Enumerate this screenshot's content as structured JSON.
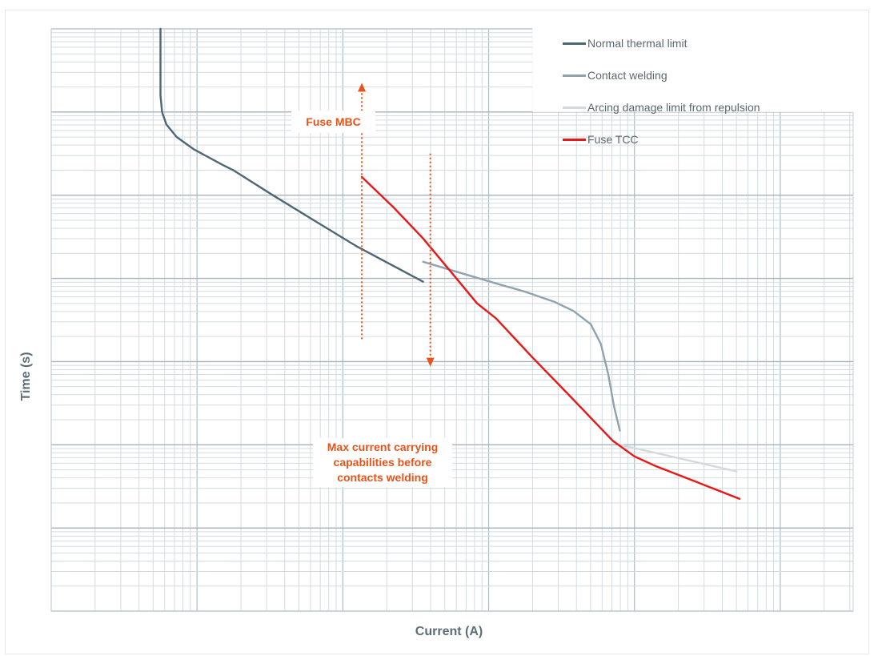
{
  "chart_data": {
    "type": "line",
    "title": "",
    "xlabel": "Current (A)",
    "ylabel": "Time (s)",
    "x_scale": "log",
    "y_scale": "log",
    "x_decades": 5.5,
    "y_decades": 7,
    "grid": true,
    "tick_labels": "none",
    "legend_position": "top-right",
    "series": [
      {
        "name": "Normal thermal limit",
        "color": "#4f6675",
        "points": [
          [
            0.749,
            7.0
          ],
          [
            0.749,
            6.2
          ],
          [
            0.76,
            6.0
          ],
          [
            0.79,
            5.85
          ],
          [
            0.86,
            5.7
          ],
          [
            0.98,
            5.55
          ],
          [
            1.18,
            5.36
          ],
          [
            1.25,
            5.3
          ],
          [
            1.52,
            5.0
          ],
          [
            1.8,
            4.7
          ],
          [
            2.1,
            4.38
          ],
          [
            2.55,
            3.96
          ]
        ]
      },
      {
        "name": "Contact welding",
        "color": "#8fa3ae",
        "points": [
          [
            2.55,
            4.2
          ],
          [
            2.8,
            4.07
          ],
          [
            3.05,
            3.94
          ],
          [
            3.25,
            3.84
          ],
          [
            3.45,
            3.72
          ],
          [
            3.58,
            3.61
          ],
          [
            3.7,
            3.45
          ],
          [
            3.77,
            3.21
          ],
          [
            3.82,
            2.85
          ],
          [
            3.86,
            2.46
          ],
          [
            3.9,
            2.17
          ]
        ]
      },
      {
        "name": "Arcing damage limit from repulsion",
        "color": "#d4dadc",
        "points": [
          [
            3.9,
            2.0
          ],
          [
            4.25,
            1.86
          ],
          [
            4.55,
            1.74
          ],
          [
            4.7,
            1.68
          ]
        ]
      },
      {
        "name": "Fuse TCC",
        "color": "#e81818",
        "points": [
          [
            2.13,
            5.22
          ],
          [
            2.35,
            4.85
          ],
          [
            2.55,
            4.48
          ],
          [
            2.75,
            4.06
          ],
          [
            2.92,
            3.7
          ],
          [
            3.05,
            3.52
          ],
          [
            3.3,
            3.05
          ],
          [
            3.55,
            2.6
          ],
          [
            3.85,
            2.05
          ],
          [
            4.0,
            1.86
          ],
          [
            4.15,
            1.74
          ],
          [
            4.4,
            1.57
          ],
          [
            4.72,
            1.35
          ]
        ]
      }
    ],
    "annotations": [
      {
        "text": "Fuse MBC",
        "color": "#e8531a"
      },
      {
        "text": "Max current carrying capabilities before contacts welding",
        "lines": [
          "Max current carrying",
          "capabilities before",
          "contacts welding"
        ],
        "color": "#e8531a"
      }
    ],
    "markers": [
      {
        "name": "fuse-mbc-arrow",
        "x": 2.13,
        "y_from": 3.27,
        "y_to": 6.35,
        "direction": "up",
        "color": "#e8531a"
      },
      {
        "name": "welding-arrow",
        "x": 2.6,
        "y_from": 5.5,
        "y_to": 2.94,
        "direction": "down",
        "color": "#e8531a"
      }
    ]
  }
}
